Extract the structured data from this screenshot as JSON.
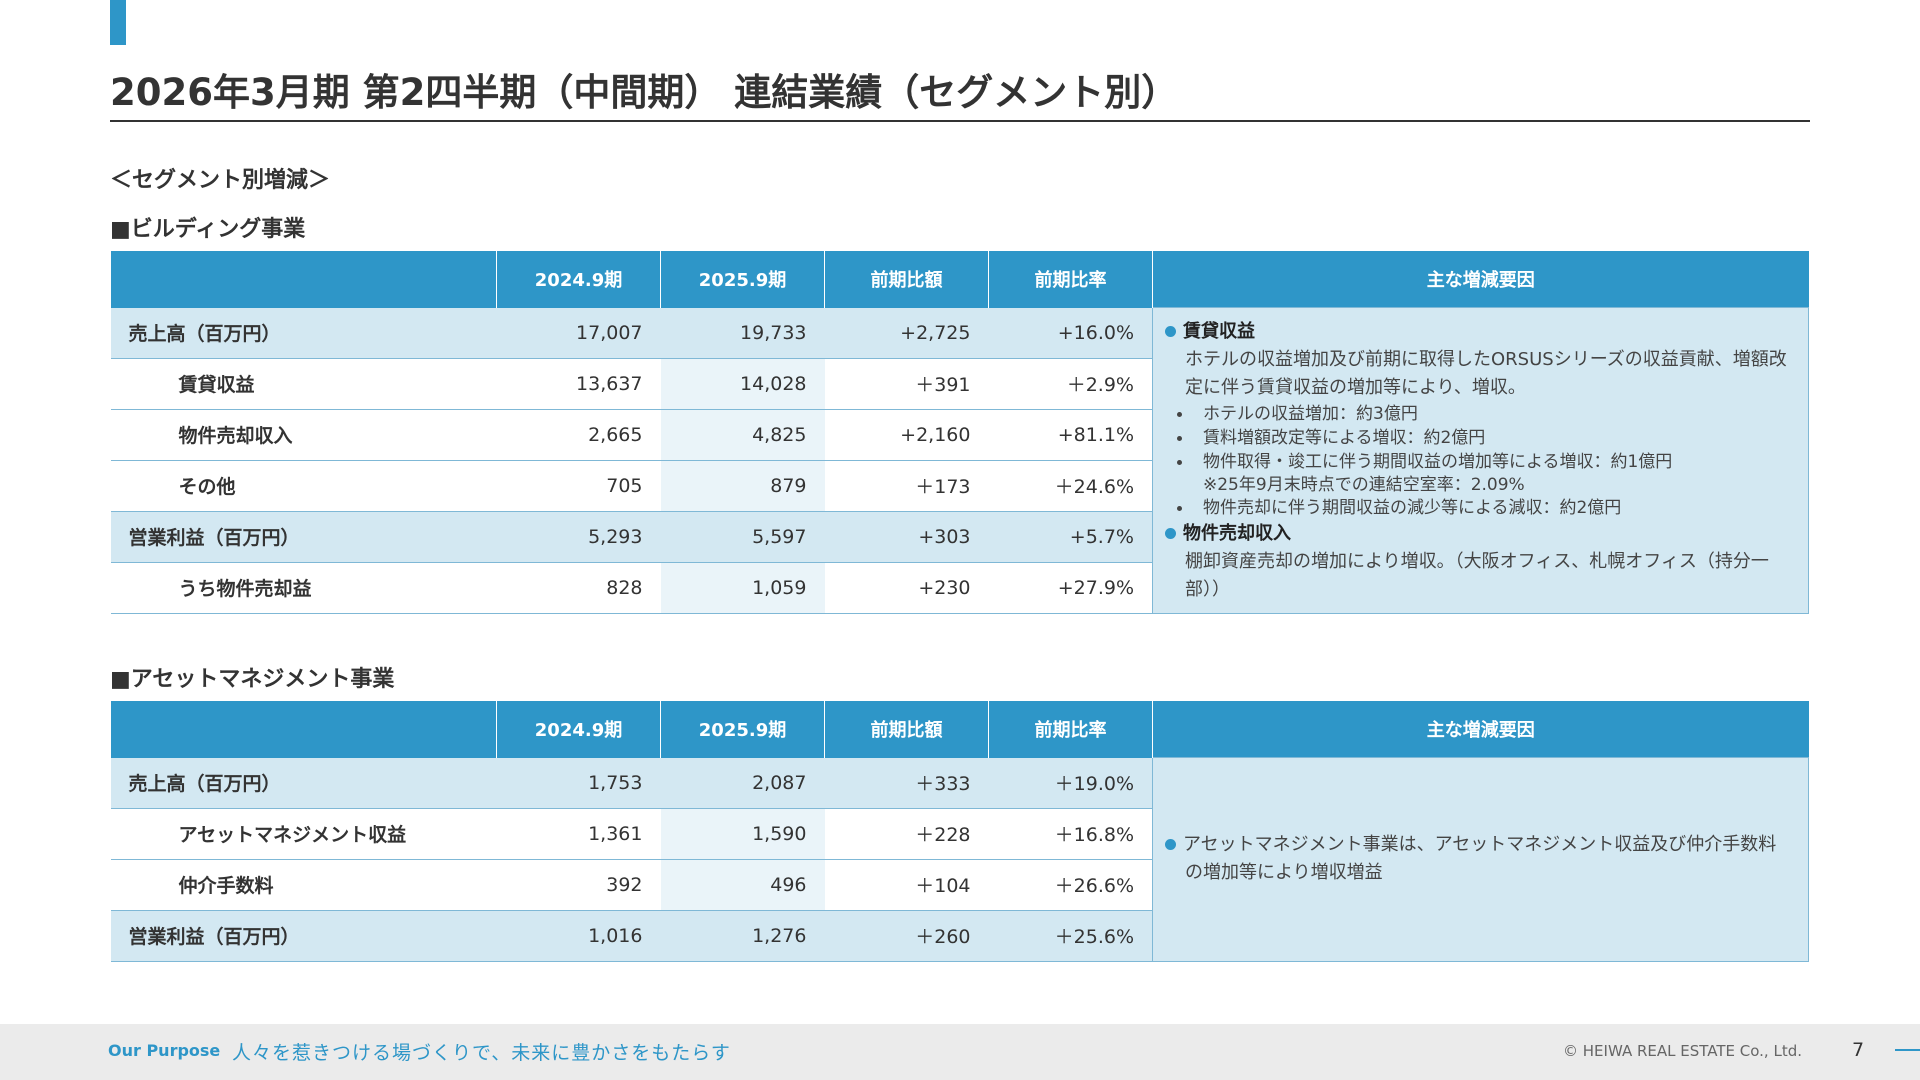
{
  "header": {
    "title": "2026年3月期 第2四半期（中間期） 連結業績（セグメント別）",
    "subtitle": "＜セグメント別増減＞"
  },
  "sections": [
    {
      "heading": "■ビルディング事業",
      "columns": [
        "2024.9期",
        "2025.9期",
        "前期比額",
        "前期比率",
        "主な増減要因"
      ],
      "rows": [
        {
          "label": "売上高（百万円）",
          "cells": [
            "17,007",
            "19,733",
            "+2,725",
            "+16.0%"
          ]
        },
        {
          "label": "賃貸収益",
          "cells": [
            "13,637",
            "14,028",
            "＋391",
            "＋2.9%"
          ]
        },
        {
          "label": "物件売却収入",
          "cells": [
            "2,665",
            "4,825",
            "+2,160",
            "+81.1%"
          ]
        },
        {
          "label": "その他",
          "cells": [
            "705",
            "879",
            "＋173",
            "＋24.6%"
          ]
        },
        {
          "label": "営業利益（百万円）",
          "cells": [
            "5,293",
            "5,597",
            "+303",
            "+5.7%"
          ]
        },
        {
          "label": "うち物件売却益",
          "cells": [
            "828",
            "1,059",
            "+230",
            "+27.9%"
          ]
        }
      ],
      "notes": [
        {
          "heading": "賃貸収益",
          "text": "ホテルの収益増加及び前期に取得したORSUSシリーズの収益貢献、増額改定に伴う賃貸収益の増加等により、増収。",
          "bullets": [
            {
              "text": "ホテルの収益増加：約3億円"
            },
            {
              "text": "賃料増額改定等による増収：約2億円"
            },
            {
              "text": "物件取得・竣工に伴う期間収益の増加等による増収：約1億円",
              "sub": "※25年9月末時点での連結空室率：2.09%"
            },
            {
              "text": "物件売却に伴う期間収益の減少等による減収：約2億円"
            }
          ]
        },
        {
          "heading": "物件売却収入",
          "text": "棚卸資産売却の増加により増収。（大阪オフィス、札幌オフィス（持分一部））"
        }
      ]
    },
    {
      "heading": "■アセットマネジメント事業",
      "columns": [
        "2024.9期",
        "2025.9期",
        "前期比額",
        "前期比率",
        "主な増減要因"
      ],
      "rows": [
        {
          "label": "売上高（百万円）",
          "cells": [
            "1,753",
            "2,087",
            "＋333",
            "＋19.0%"
          ]
        },
        {
          "label": "アセットマネジメント収益",
          "cells": [
            "1,361",
            "1,590",
            "＋228",
            "＋16.8%"
          ]
        },
        {
          "label": "仲介手数料",
          "cells": [
            "392",
            "496",
            "＋104",
            "＋26.6%"
          ]
        },
        {
          "label": "営業利益（百万円）",
          "cells": [
            "1,016",
            "1,276",
            "＋260",
            "＋25.6%"
          ]
        }
      ],
      "notes": [
        {
          "text": "アセットマネジメント事業は、アセットマネジメント収益及び仲介手数料の増加等により増収増益"
        }
      ]
    }
  ],
  "footer": {
    "purpose_label": "Our Purpose",
    "purpose": "人々を惹きつける場づくりで、未来に豊かさをもたらす",
    "copyright": "© HEIWA REAL ESTATE Co., Ltd.",
    "page": "7"
  }
}
